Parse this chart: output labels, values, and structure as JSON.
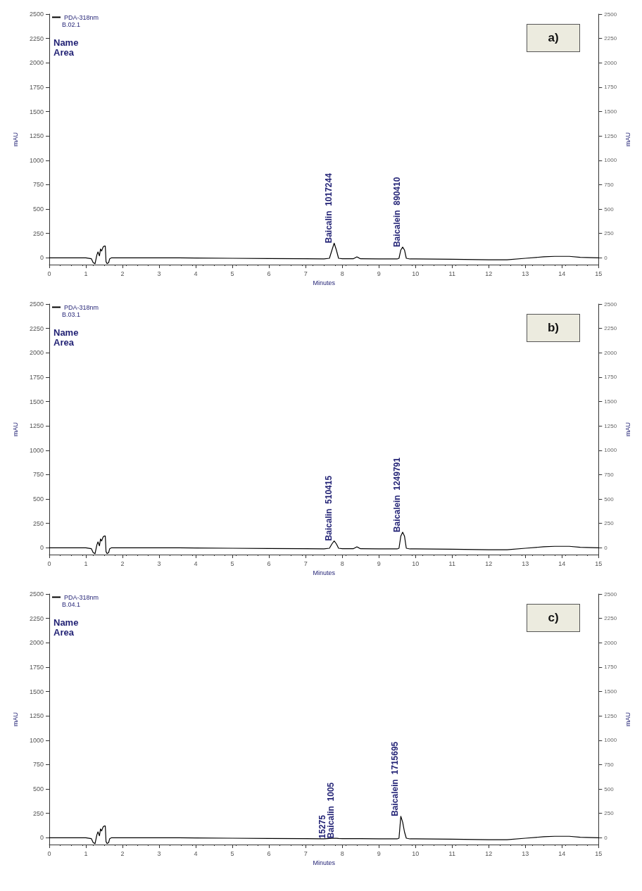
{
  "chart_data": [
    {
      "type": "line",
      "title": "a)",
      "xlabel": "Minutes",
      "ylabel": "mAU",
      "y2label": "mAU",
      "legend": "top left",
      "grid": false,
      "marker": "none",
      "line_style": "solid",
      "x": [
        0,
        0.5,
        1.0,
        1.15,
        1.2,
        1.25,
        1.3,
        1.33,
        1.37,
        1.4,
        1.43,
        1.47,
        1.5,
        1.53,
        1.55,
        1.58,
        1.62,
        1.65,
        1.7,
        2,
        3,
        4,
        5,
        6,
        7,
        7.5,
        7.65,
        7.72,
        7.78,
        7.84,
        7.9,
        8.0,
        8.3,
        8.4,
        8.5,
        9,
        9.5,
        9.55,
        9.6,
        9.65,
        9.7,
        9.75,
        9.85,
        10,
        11,
        12,
        12.5,
        13,
        13.5,
        13.8,
        14.2,
        14.5,
        15
      ],
      "series": [
        {
          "name": "PDA-318nm",
          "color": "#000000",
          "values": [
            0,
            0,
            0,
            -10,
            -50,
            -60,
            30,
            60,
            20,
            90,
            70,
            110,
            120,
            120,
            -40,
            -60,
            -50,
            -10,
            0,
            0,
            0,
            -2,
            -5,
            -8,
            -10,
            -12,
            -5,
            80,
            150,
            80,
            -5,
            -10,
            -10,
            10,
            -10,
            -12,
            -12,
            -5,
            80,
            110,
            80,
            -5,
            -12,
            -12,
            -15,
            -20,
            -20,
            -5,
            10,
            15,
            15,
            5,
            0
          ]
        }
      ],
      "annotations": [
        "B.02.1",
        "Name",
        "Area",
        {
          "text": "Baicalin  1017244",
          "x": 7.78,
          "y": 150
        },
        {
          "text": "Baicalein  890410",
          "x": 9.65,
          "y": 110
        }
      ],
      "xlim": [
        0,
        15
      ],
      "xticks": [
        0,
        1,
        2,
        3,
        4,
        5,
        6,
        7,
        8,
        9,
        10,
        11,
        12,
        13,
        14,
        15
      ],
      "ylim": [
        -70,
        2500
      ],
      "yticks": [
        0,
        250,
        500,
        750,
        1000,
        1250,
        1500,
        1750,
        2000,
        2250,
        2500
      ],
      "y2lim": [
        -70,
        2500
      ],
      "y2ticks": [
        0,
        250,
        500,
        750,
        1000,
        1250,
        1500,
        1750,
        2000,
        2250,
        2500
      ]
    },
    {
      "type": "line",
      "title": "b)",
      "xlabel": "Minutes",
      "ylabel": "mAU",
      "y2label": "mAU",
      "legend": "top left",
      "grid": false,
      "marker": "none",
      "line_style": "solid",
      "x": [
        0,
        0.5,
        1.0,
        1.15,
        1.2,
        1.25,
        1.3,
        1.33,
        1.37,
        1.4,
        1.43,
        1.47,
        1.5,
        1.53,
        1.55,
        1.58,
        1.62,
        1.65,
        1.7,
        2,
        3,
        4,
        5,
        6,
        7,
        7.5,
        7.65,
        7.72,
        7.78,
        7.84,
        7.9,
        8.0,
        8.3,
        8.4,
        8.5,
        9,
        9.5,
        9.55,
        9.6,
        9.65,
        9.7,
        9.75,
        9.85,
        10,
        11,
        12,
        12.5,
        13,
        13.5,
        13.8,
        14.2,
        14.5,
        15
      ],
      "series": [
        {
          "name": "PDA-318nm",
          "color": "#000000",
          "values": [
            0,
            0,
            0,
            -10,
            -50,
            -60,
            30,
            60,
            20,
            90,
            70,
            110,
            120,
            120,
            -40,
            -60,
            -50,
            -10,
            0,
            0,
            0,
            -2,
            -5,
            -8,
            -10,
            -12,
            -5,
            40,
            70,
            40,
            -5,
            -10,
            -10,
            10,
            -10,
            -12,
            -12,
            -5,
            120,
            160,
            120,
            -5,
            -12,
            -12,
            -15,
            -20,
            -20,
            -5,
            10,
            15,
            15,
            5,
            0
          ]
        }
      ],
      "annotations": [
        "B.03.1",
        "Name",
        "Area",
        {
          "text": "Baicalin  510415",
          "x": 7.78,
          "y": 70
        },
        {
          "text": "Baicalein  1249791",
          "x": 9.65,
          "y": 160
        }
      ],
      "xlim": [
        0,
        15
      ],
      "xticks": [
        0,
        1,
        2,
        3,
        4,
        5,
        6,
        7,
        8,
        9,
        10,
        11,
        12,
        13,
        14,
        15
      ],
      "ylim": [
        -70,
        2500
      ],
      "yticks": [
        0,
        250,
        500,
        750,
        1000,
        1250,
        1500,
        1750,
        2000,
        2250,
        2500
      ],
      "y2lim": [
        -70,
        2500
      ],
      "y2ticks": [
        0,
        250,
        500,
        750,
        1000,
        1250,
        1500,
        1750,
        2000,
        2250,
        2500
      ]
    },
    {
      "type": "line",
      "title": "c)",
      "xlabel": "Minutes",
      "ylabel": "mAU",
      "y2label": "mAU",
      "legend": "top left",
      "grid": false,
      "marker": "none",
      "line_style": "solid",
      "x": [
        0,
        0.5,
        1.0,
        1.15,
        1.2,
        1.25,
        1.3,
        1.33,
        1.37,
        1.4,
        1.43,
        1.47,
        1.5,
        1.53,
        1.55,
        1.58,
        1.62,
        1.65,
        1.7,
        2,
        3,
        4,
        5,
        6,
        7,
        7.5,
        7.65,
        7.72,
        7.78,
        7.84,
        7.9,
        8.0,
        8.3,
        8.4,
        8.5,
        9,
        9.5,
        9.55,
        9.6,
        9.65,
        9.7,
        9.75,
        9.85,
        10,
        11,
        12,
        12.5,
        13,
        13.5,
        13.8,
        14.2,
        14.5,
        15
      ],
      "series": [
        {
          "name": "PDA-318nm",
          "color": "#000000",
          "values": [
            0,
            0,
            0,
            -10,
            -50,
            -60,
            30,
            60,
            20,
            90,
            70,
            110,
            120,
            120,
            -40,
            -60,
            -50,
            -10,
            0,
            0,
            0,
            -2,
            -5,
            -8,
            -10,
            -12,
            -8,
            -6,
            -5,
            -6,
            -8,
            -10,
            -10,
            -10,
            -10,
            -12,
            -12,
            -5,
            220,
            160,
            60,
            -5,
            -12,
            -12,
            -15,
            -20,
            -20,
            -5,
            10,
            15,
            15,
            5,
            0
          ]
        }
      ],
      "annotations": [
        "B.04.1",
        "Name",
        "Area",
        {
          "text": "15275",
          "x": 7.62,
          "y": -8
        },
        {
          "text": "Baicalin  1005",
          "x": 7.85,
          "y": -6
        },
        {
          "text": "Baicalein  1715695",
          "x": 9.6,
          "y": 220
        }
      ],
      "xlim": [
        0,
        15
      ],
      "xticks": [
        0,
        1,
        2,
        3,
        4,
        5,
        6,
        7,
        8,
        9,
        10,
        11,
        12,
        13,
        14,
        15
      ],
      "ylim": [
        -70,
        2500
      ],
      "yticks": [
        0,
        250,
        500,
        750,
        1000,
        1250,
        1500,
        1750,
        2000,
        2250,
        2500
      ],
      "y2lim": [
        -70,
        2500
      ],
      "y2ticks": [
        0,
        250,
        500,
        750,
        1000,
        1250,
        1500,
        1750,
        2000,
        2250,
        2500
      ]
    }
  ]
}
